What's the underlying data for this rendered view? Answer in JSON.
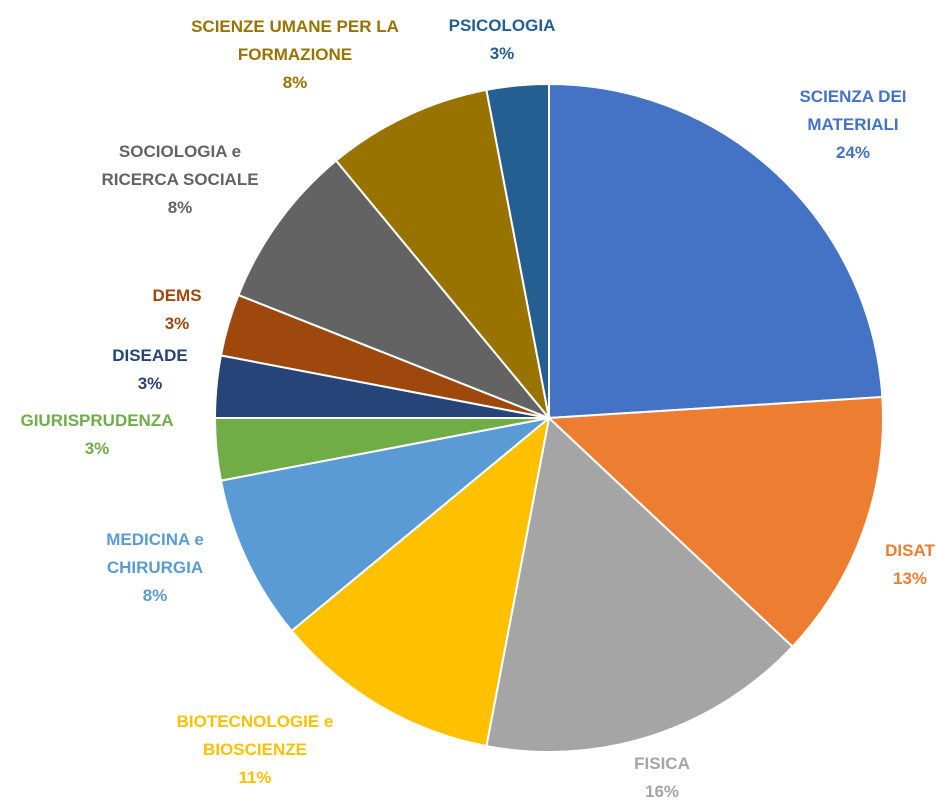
{
  "chart_data": {
    "type": "pie",
    "categories": [
      "SCIENZA DEI MATERIALI",
      "DISAT",
      "FISICA",
      "BIOTECNOLOGIE e BIOSCIENZE",
      "MEDICINA e CHIRURGIA",
      "GIURISPRUDENZA",
      "DISEADE",
      "DEMS",
      "SOCIOLOGIA e RICERCA SOCIALE",
      "SCIENZE UMANE PER LA FORMAZIONE",
      "PSICOLOGIA"
    ],
    "values": [
      24,
      13,
      16,
      11,
      8,
      3,
      3,
      3,
      8,
      8,
      3
    ],
    "value_labels": [
      "24%",
      "13%",
      "16%",
      "11%",
      "8%",
      "3%",
      "3%",
      "3%",
      "8%",
      "8%",
      "3%"
    ],
    "colors": [
      "#4472c4",
      "#ed7d31",
      "#a5a5a5",
      "#ffc000",
      "#5b9bd5",
      "#70ad47",
      "#264478",
      "#9e480e",
      "#636363",
      "#997300",
      "#255e91"
    ]
  }
}
